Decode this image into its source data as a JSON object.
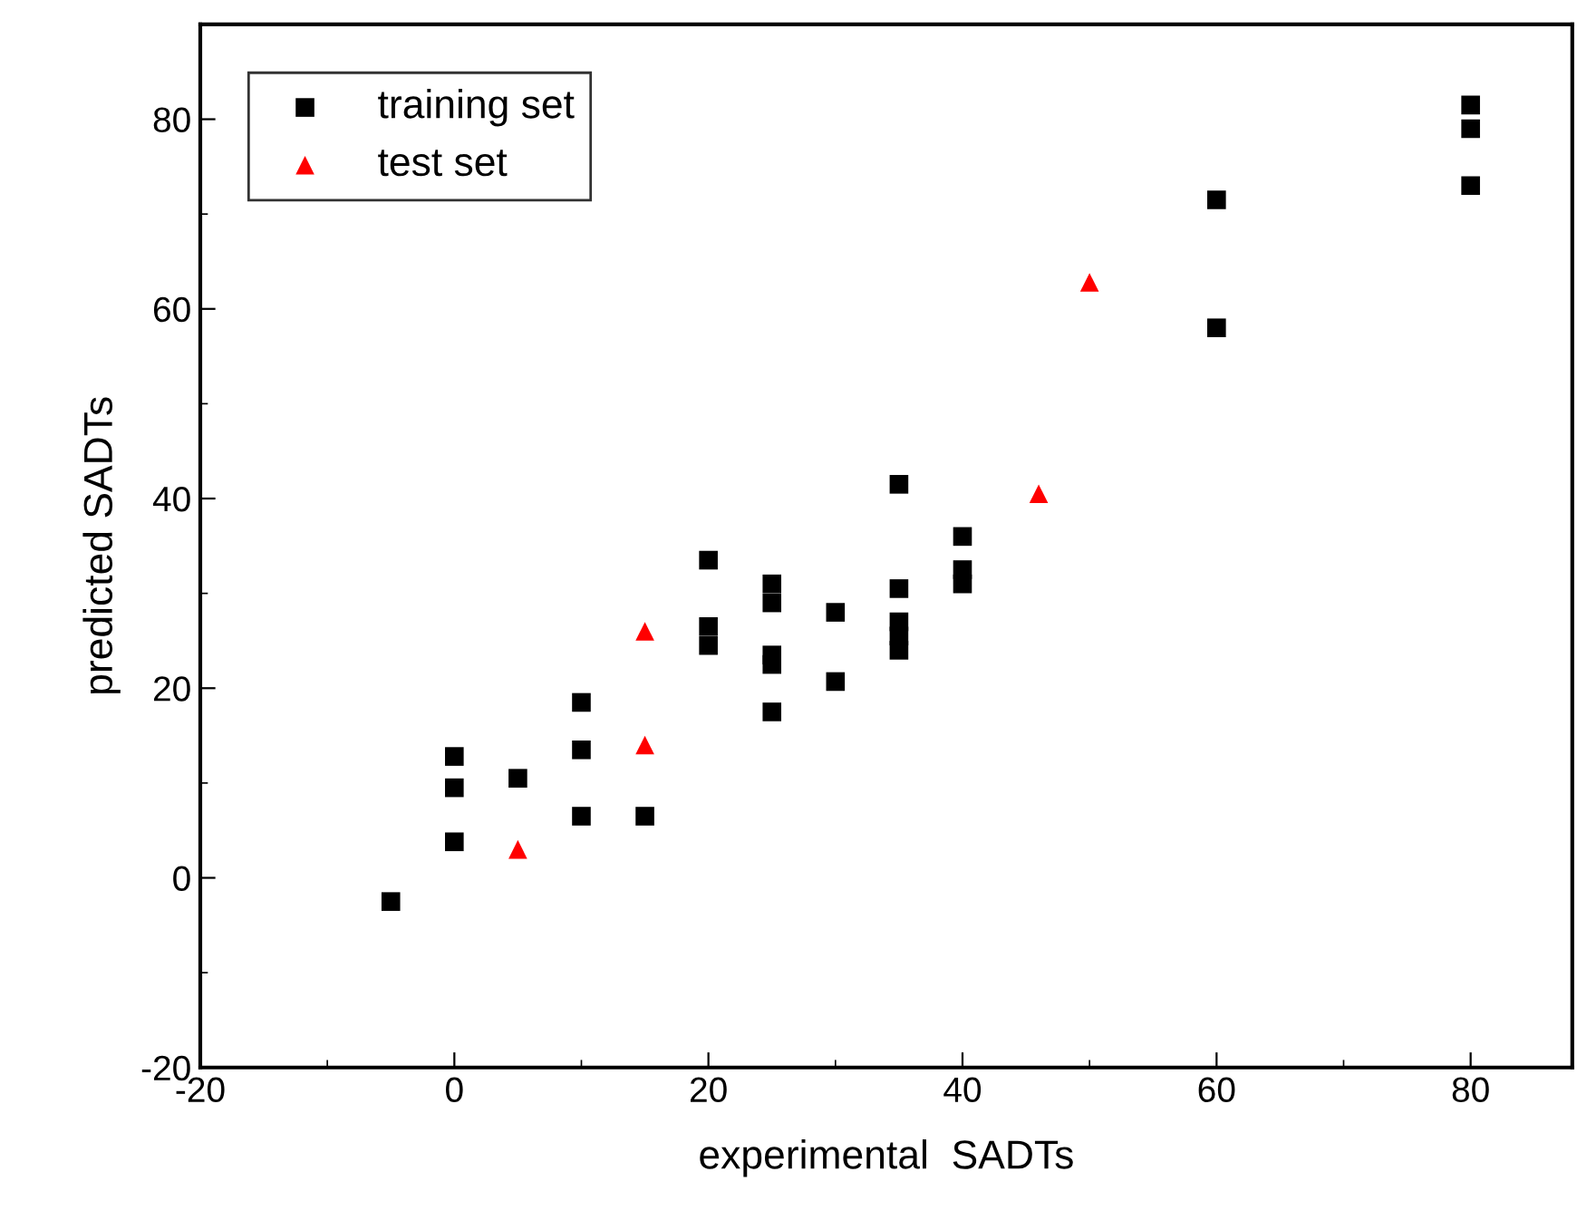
{
  "chart_data": {
    "type": "scatter",
    "xlabel": "experimental  SADTs",
    "ylabel": "predicted SADTs",
    "xlim": [
      -20,
      88
    ],
    "ylim": [
      -20,
      90
    ],
    "xticks": [
      -20,
      0,
      20,
      40,
      60,
      80
    ],
    "yticks": [
      -20,
      0,
      20,
      40,
      60,
      80
    ],
    "grid": false,
    "legend": "top left",
    "series": [
      {
        "name": "training set",
        "color": "#000000",
        "marker": "square",
        "x": [
          -5,
          0,
          0,
          0,
          5,
          10,
          10,
          10,
          15,
          20,
          20,
          20,
          25,
          25,
          25,
          25,
          25,
          30,
          30,
          35,
          35,
          35,
          35,
          35,
          40,
          40,
          40,
          60,
          60,
          80,
          80,
          80
        ],
        "values": [
          -2.5,
          12.8,
          9.5,
          3.8,
          10.5,
          18.5,
          13.5,
          6.5,
          6.5,
          33.5,
          26.5,
          24.5,
          31,
          29,
          23.5,
          22.5,
          17.5,
          28,
          20.7,
          41.5,
          30.5,
          27,
          25.5,
          24,
          36,
          32.5,
          31,
          71.5,
          58,
          81.5,
          79,
          73
        ]
      },
      {
        "name": "test set",
        "color": "#ff0000",
        "marker": "triangle",
        "x": [
          5,
          15,
          15,
          46,
          50
        ],
        "values": [
          3,
          26,
          14,
          40.5,
          62.8
        ]
      }
    ]
  }
}
